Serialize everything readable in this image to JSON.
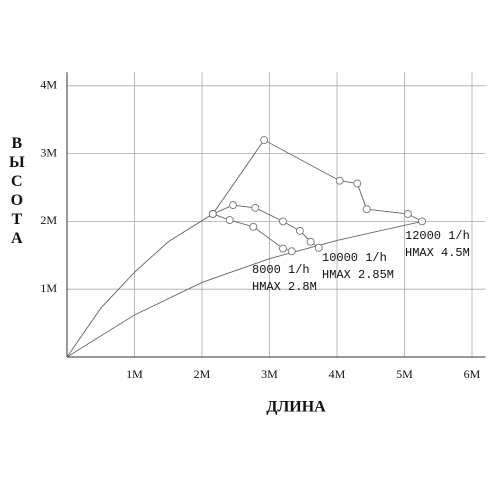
{
  "chart_data": {
    "type": "line",
    "x_label": "ДЛИНА",
    "y_label": "ВЫСОТА",
    "xlim": [
      0,
      6.2
    ],
    "ylim": [
      0,
      4.2
    ],
    "xticks": [
      {
        "value": 1,
        "label": "1M"
      },
      {
        "value": 2,
        "label": "2M"
      },
      {
        "value": 3,
        "label": "3M"
      },
      {
        "value": 4,
        "label": "4M"
      },
      {
        "value": 5,
        "label": "5M"
      },
      {
        "value": 6,
        "label": "6M"
      }
    ],
    "yticks": [
      {
        "value": 1,
        "label": "1M"
      },
      {
        "value": 2,
        "label": "2M"
      },
      {
        "value": 3,
        "label": "3M"
      },
      {
        "value": 4,
        "label": "4M"
      }
    ],
    "grid": true,
    "series": [
      {
        "color": "#666666",
        "markers": false,
        "x": [
          0,
          0.5,
          1,
          1.5,
          2.16
        ],
        "values": [
          0,
          0.72,
          1.25,
          1.7,
          2.11
        ]
      },
      {
        "color": "#666666",
        "markers": false,
        "x": [
          0,
          1,
          2,
          3,
          4,
          5.26
        ],
        "values": [
          0,
          0.62,
          1.1,
          1.45,
          1.72,
          2.0
        ]
      },
      {
        "color": "#666666",
        "markers": true,
        "annotation": [
          "8000 1/h",
          "HMAX 2.8M"
        ],
        "x": [
          2.16,
          2.41,
          2.76,
          3.2,
          3.33
        ],
        "values": [
          2.11,
          2.02,
          1.92,
          1.6,
          1.56
        ]
      },
      {
        "color": "#666666",
        "markers": true,
        "annotation": [
          "10000 1/h",
          "HMAX 2.85M"
        ],
        "x": [
          2.16,
          2.46,
          2.79,
          3.2,
          3.45,
          3.61,
          3.73
        ],
        "values": [
          2.11,
          2.24,
          2.2,
          2.0,
          1.86,
          1.7,
          1.61
        ]
      },
      {
        "color": "#666666",
        "markers": true,
        "annotation": [
          "12000 1/h",
          "HMAX 4.5M"
        ],
        "x": [
          2.16,
          2.92,
          4.04,
          4.3,
          4.44,
          5.05,
          5.26
        ],
        "values": [
          2.11,
          3.2,
          2.6,
          2.56,
          2.18,
          2.11,
          2.0
        ]
      }
    ]
  }
}
